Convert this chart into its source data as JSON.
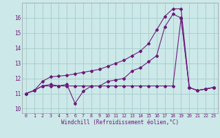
{
  "xlabel": "Windchill (Refroidissement éolien,°C)",
  "background_color": "#cce8e8",
  "grid_color": "#aacfcf",
  "line_color": "#6b1a7a",
  "ylim": [
    9.7,
    17.0
  ],
  "xlim": [
    -0.5,
    23.5
  ],
  "yticks": [
    10,
    11,
    12,
    13,
    14,
    15,
    16
  ],
  "xticks": [
    0,
    1,
    2,
    3,
    4,
    5,
    6,
    7,
    8,
    9,
    10,
    11,
    12,
    13,
    14,
    15,
    16,
    17,
    18,
    19,
    20,
    21,
    22,
    23
  ],
  "series1_x": [
    0,
    1,
    2,
    3,
    4,
    5,
    6,
    7,
    8,
    9,
    10,
    11,
    12,
    13,
    14,
    15,
    16,
    17,
    18,
    19,
    20,
    21,
    22,
    23
  ],
  "series1_y": [
    11.0,
    11.2,
    11.5,
    11.6,
    11.5,
    11.6,
    10.35,
    11.15,
    11.5,
    11.5,
    11.8,
    11.9,
    12.0,
    12.5,
    12.7,
    13.1,
    13.5,
    15.4,
    16.25,
    16.0,
    11.4,
    11.2,
    11.3,
    11.4
  ],
  "series2_x": [
    0,
    1,
    2,
    3,
    4,
    5,
    6,
    7,
    8,
    9,
    10,
    11,
    12,
    13,
    14,
    15,
    16,
    17,
    18,
    19,
    20,
    21,
    22,
    23
  ],
  "series2_y": [
    11.0,
    11.2,
    11.5,
    11.5,
    11.5,
    11.5,
    11.5,
    11.5,
    11.5,
    11.5,
    11.5,
    11.5,
    11.5,
    11.5,
    11.5,
    11.5,
    11.5,
    11.5,
    11.5,
    16.0,
    11.4,
    11.2,
    11.3,
    11.4
  ],
  "series3_x": [
    0,
    1,
    2,
    3,
    4,
    5,
    6,
    7,
    8,
    9,
    10,
    11,
    12,
    13,
    14,
    15,
    16,
    17,
    18,
    19,
    20,
    21,
    22,
    23
  ],
  "series3_y": [
    11.0,
    11.2,
    11.8,
    12.1,
    12.15,
    12.2,
    12.3,
    12.4,
    12.5,
    12.6,
    12.8,
    13.0,
    13.2,
    13.5,
    13.8,
    14.3,
    15.2,
    16.1,
    16.6,
    16.6,
    11.4,
    11.2,
    11.3,
    11.4
  ]
}
